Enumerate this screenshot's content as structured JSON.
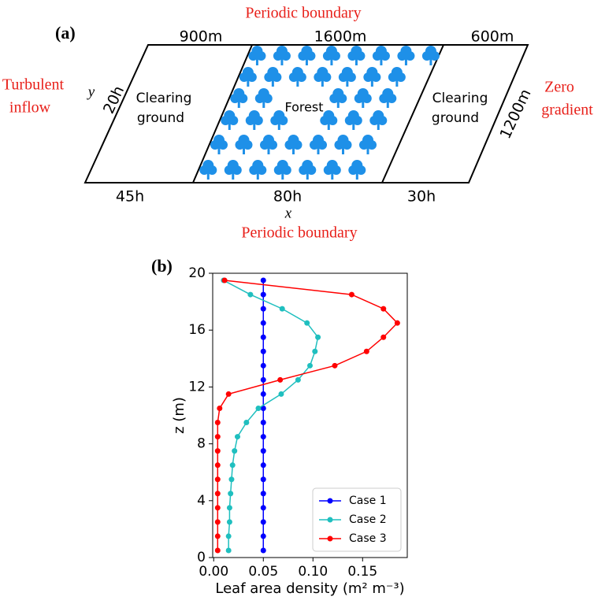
{
  "diagram": {
    "label": "(a)",
    "top_boundary": "Periodic boundary",
    "bottom_boundary": "Periodic boundary",
    "inflow": [
      "Turbulent",
      "inflow"
    ],
    "outflow": [
      "Zero",
      "gradient"
    ],
    "top_lengths": [
      "900m",
      "1600m",
      "600m"
    ],
    "bottom_lengths": [
      "45h",
      "80h",
      "30h"
    ],
    "y_axis": "y",
    "y_width": "20h",
    "y_length": "1200m",
    "x_axis": "x",
    "left_zone": [
      "Clearing",
      "ground"
    ],
    "forest": "Forest",
    "right_zone": [
      "Clearing",
      "ground"
    ]
  },
  "chart_data": {
    "type": "line",
    "label": "(b)",
    "x_label": "Leaf area density (m² m⁻³)",
    "y_label": "z (m)",
    "y": [
      0.5,
      1.5,
      2.5,
      3.5,
      4.5,
      5.5,
      6.5,
      7.5,
      8.5,
      9.5,
      10.5,
      11.5,
      12.5,
      13.5,
      14.5,
      15.5,
      16.5,
      17.5,
      18.5,
      19.5
    ],
    "series": [
      {
        "name": "Case 1",
        "color": "#0000ff",
        "values": [
          0.05,
          0.05,
          0.05,
          0.05,
          0.05,
          0.05,
          0.05,
          0.05,
          0.05,
          0.05,
          0.05,
          0.05,
          0.05,
          0.05,
          0.05,
          0.05,
          0.05,
          0.05,
          0.05,
          0.05
        ]
      },
      {
        "name": "Case 2",
        "color": "#1fbfbf",
        "values": [
          0.015,
          0.015,
          0.016,
          0.016,
          0.017,
          0.018,
          0.019,
          0.021,
          0.024,
          0.033,
          0.045,
          0.068,
          0.085,
          0.097,
          0.102,
          0.105,
          0.094,
          0.069,
          0.037,
          0.01
        ]
      },
      {
        "name": "Case 3",
        "color": "#ff0000",
        "values": [
          0.004,
          0.004,
          0.004,
          0.004,
          0.004,
          0.004,
          0.004,
          0.004,
          0.004,
          0.004,
          0.006,
          0.015,
          0.067,
          0.122,
          0.154,
          0.171,
          0.185,
          0.171,
          0.139,
          0.011
        ]
      }
    ],
    "xlim": [
      -0.001,
      0.195
    ],
    "ylim": [
      0,
      20
    ],
    "xticks": [
      {
        "value": 0,
        "label": "0.00"
      },
      {
        "value": 0.05,
        "label": "0.05"
      },
      {
        "value": 0.1,
        "label": "0.10"
      },
      {
        "value": 0.15,
        "label": "0.15"
      }
    ],
    "yticks": [
      0,
      4,
      8,
      12,
      16,
      20
    ],
    "legend": "lower right"
  }
}
